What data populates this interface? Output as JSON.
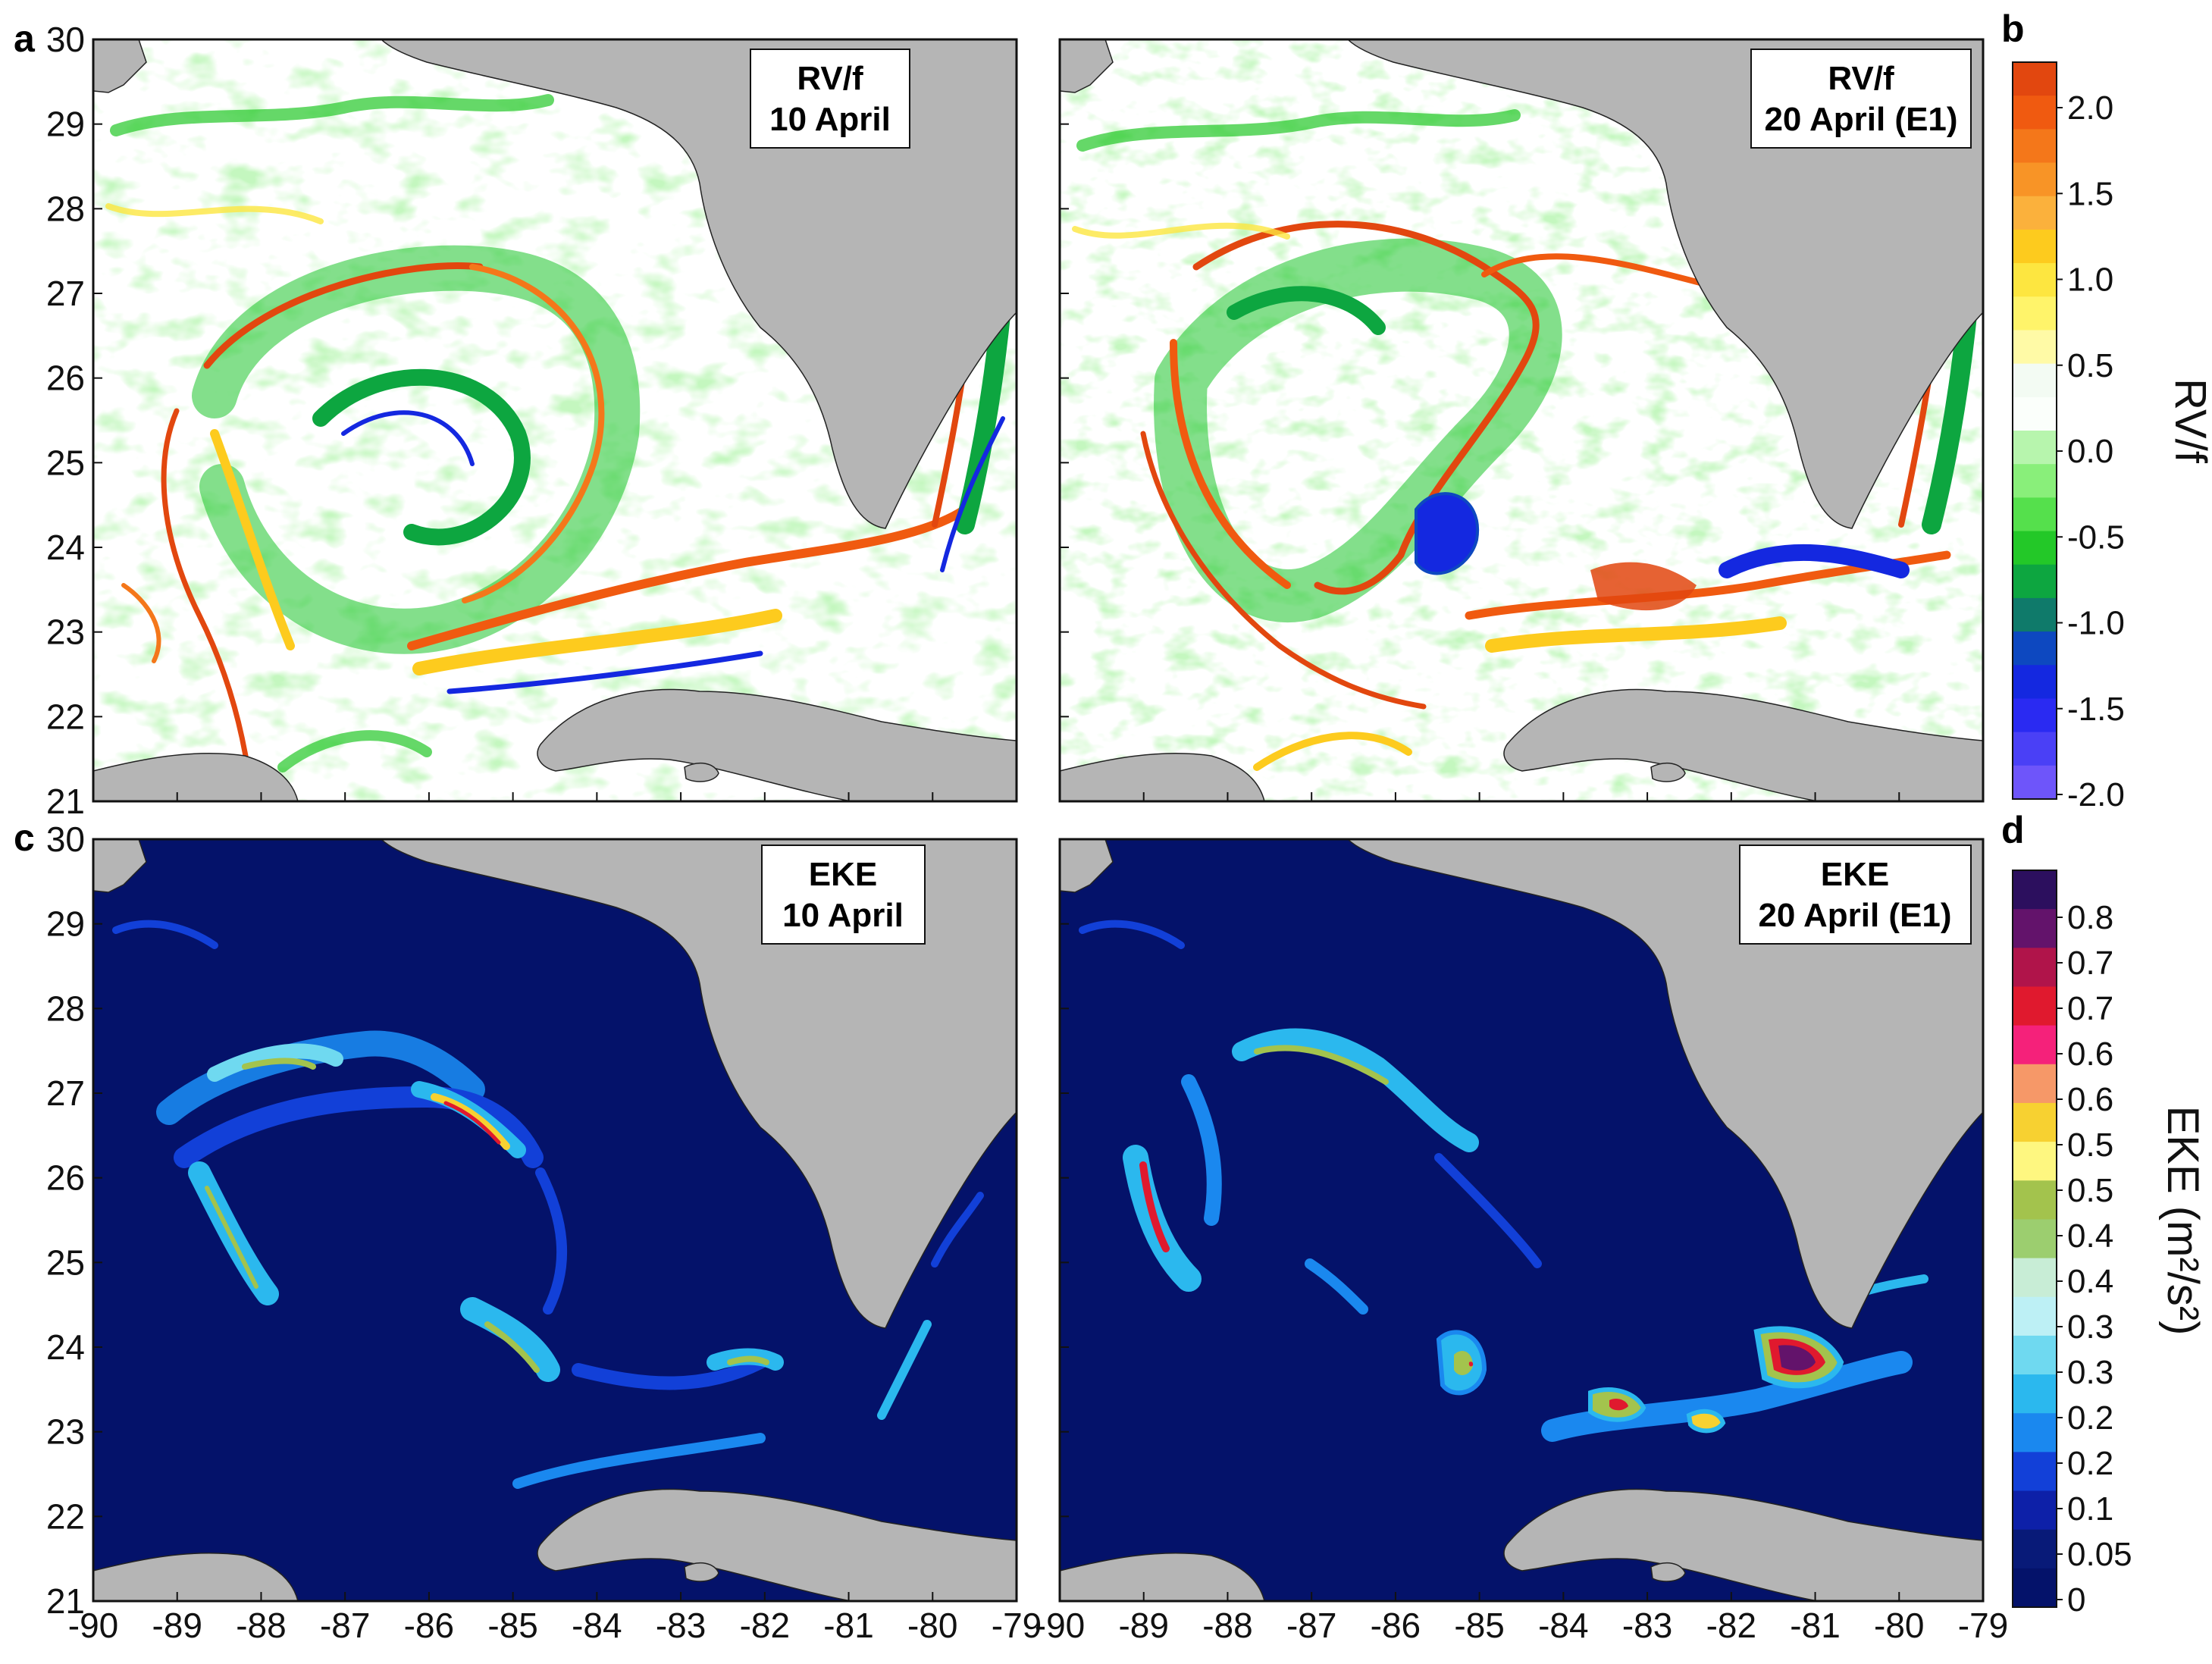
{
  "panels": [
    {
      "letter": "a",
      "box": [
        "RV/f",
        "10 April"
      ],
      "field": "rv",
      "day": 10
    },
    {
      "letter": "b",
      "box": [
        "RV/f",
        "20 April (E1)"
      ],
      "field": "rv",
      "day": 20
    },
    {
      "letter": "c",
      "box": [
        "EKE",
        "10 April"
      ],
      "field": "eke",
      "day": 10
    },
    {
      "letter": "d",
      "box": [
        "EKE",
        "20 April (E1)"
      ],
      "field": "eke",
      "day": 20
    }
  ],
  "y_ticks": [
    "21",
    "22",
    "23",
    "24",
    "25",
    "26",
    "27",
    "28",
    "29",
    "30"
  ],
  "x_ticks": [
    "-90",
    "-89",
    "-88",
    "-87",
    "-86",
    "-85",
    "-84",
    "-83",
    "-82",
    "-81",
    "-80",
    "-79"
  ],
  "colorbars": {
    "rv": {
      "title": "RV/f",
      "labels": [
        "2.0",
        "1.5",
        "1.0",
        "0.5",
        "0.0",
        "-0.5",
        "-1.0",
        "-1.5",
        "-2.0"
      ],
      "colors": [
        "#e2470f",
        "#f05a10",
        "#f4771a",
        "#f89426",
        "#fbb13c",
        "#fdcb1e",
        "#fde640",
        "#fff46a",
        "#fffaa6",
        "#f3fbf3",
        "#fbfffb",
        "#b7f5ad",
        "#89ef7a",
        "#55e04c",
        "#23c828",
        "#0da640",
        "#0f7a6a",
        "#0d48c0",
        "#1428e0",
        "#2a2af2",
        "#4a40f6",
        "#6e55fa"
      ]
    },
    "eke": {
      "title": "EKE (m²/s²)",
      "labels": [
        "0.8",
        "0.7",
        "0.7",
        "0.6",
        "0.6",
        "0.5",
        "0.5",
        "0.4",
        "0.4",
        "0.3",
        "0.3",
        "0.2",
        "0.2",
        "0.1",
        "0.05",
        "0"
      ],
      "colors": [
        "#2c0f5e",
        "#63136b",
        "#b0144a",
        "#e0192e",
        "#f5217a",
        "#f69868",
        "#f7d131",
        "#fef780",
        "#a3c34d",
        "#9cce6f",
        "#c8edd6",
        "#bdf0f5",
        "#6fd9f0",
        "#2bb8ee",
        "#1a88ef",
        "#1240d8",
        "#0d20a8",
        "#081a78",
        "#04126a"
      ]
    }
  },
  "map_colors": {
    "land": "#b5b5b5",
    "rv_background": "#ffffff",
    "eke_background": "#04126a"
  }
}
